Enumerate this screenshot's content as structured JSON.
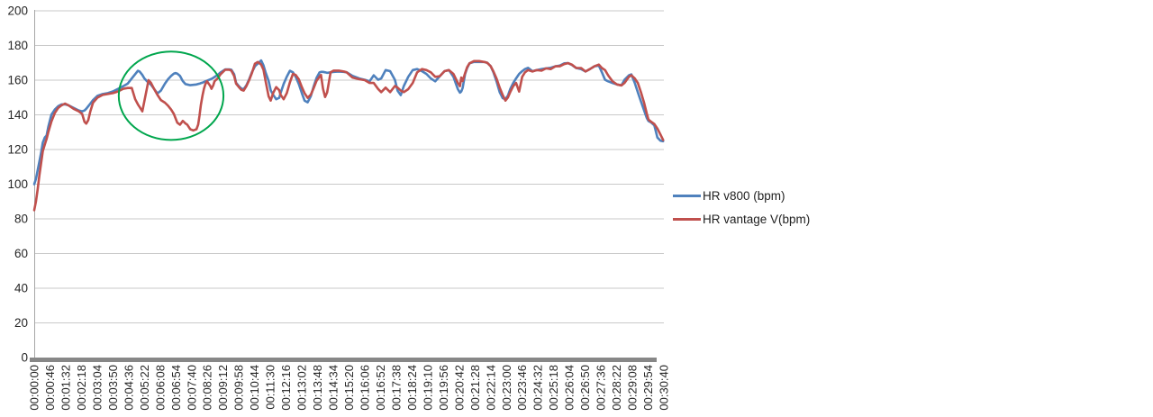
{
  "chart_data": {
    "type": "line",
    "title": "",
    "xlabel": "",
    "ylabel": "",
    "ylim": [
      0,
      200
    ],
    "ytick_step": 20,
    "y_tick_labels": [
      "0",
      "20",
      "40",
      "60",
      "80",
      "100",
      "120",
      "140",
      "160",
      "180",
      "200"
    ],
    "x_tick_interval_seconds": 46,
    "x_range_seconds": [
      0,
      1840
    ],
    "x_tick_labels": [
      "00:00:00",
      "00:00:46",
      "00:01:32",
      "00:02:18",
      "00:03:04",
      "00:03:50",
      "00:04:36",
      "00:05:22",
      "00:06:08",
      "00:06:54",
      "00:07:40",
      "00:08:26",
      "00:09:12",
      "00:09:58",
      "00:10:44",
      "00:11:30",
      "00:12:16",
      "00:13:02",
      "00:13:48",
      "00:14:34",
      "00:15:20",
      "00:16:06",
      "00:16:52",
      "00:17:38",
      "00:18:24",
      "00:19:10",
      "00:19:56",
      "00:20:42",
      "00:21:28",
      "00:22:14",
      "00:23:00",
      "00:23:46",
      "00:24:32",
      "00:25:18",
      "00:26:04",
      "00:26:50",
      "00:27:36",
      "00:28:22",
      "00:29:08",
      "00:29:54",
      "00:30:40"
    ],
    "grid": "horizontal",
    "legend_position": "right",
    "t_seconds": [
      0,
      5,
      10,
      15,
      20,
      25,
      31,
      36,
      41,
      50,
      60,
      70,
      80,
      90,
      100,
      115,
      130,
      140,
      147,
      152,
      158,
      164,
      172,
      185,
      200,
      215,
      230,
      245,
      260,
      273,
      285,
      295,
      303,
      308,
      316,
      322,
      329,
      334,
      341,
      350,
      360,
      370,
      382,
      391,
      400,
      408,
      413,
      418,
      426,
      434,
      442,
      447,
      456,
      465,
      474,
      479,
      483,
      487,
      492,
      496,
      500,
      505,
      514,
      518,
      523,
      527,
      536,
      545,
      558,
      570,
      576,
      584,
      590,
      598,
      605,
      612,
      620,
      628,
      636,
      645,
      653,
      663,
      670,
      676,
      685,
      691,
      698,
      707,
      716,
      720,
      729,
      738,
      747,
      756,
      764,
      773,
      782,
      790,
      799,
      808,
      816,
      825,
      834,
      838,
      844,
      850,
      856,
      866,
      875,
      890,
      905,
      913,
      930,
      950,
      966,
      980,
      992,
      1005,
      1014,
      1027,
      1040,
      1054,
      1062,
      1071,
      1080,
      1093,
      1106,
      1119,
      1133,
      1146,
      1159,
      1172,
      1185,
      1199,
      1212,
      1225,
      1238,
      1244,
      1248,
      1252,
      1259,
      1265,
      1272,
      1285,
      1300,
      1315,
      1324,
      1334,
      1342,
      1351,
      1360,
      1369,
      1377,
      1384,
      1391,
      1400,
      1408,
      1417,
      1426,
      1434,
      1443,
      1456,
      1469,
      1483,
      1496,
      1509,
      1523,
      1536,
      1549,
      1560,
      1571,
      1584,
      1598,
      1611,
      1624,
      1637,
      1650,
      1659,
      1668,
      1677,
      1690,
      1703,
      1716,
      1725,
      1738,
      1745,
      1755,
      1764,
      1773,
      1782,
      1790,
      1795,
      1803,
      1812,
      1821,
      1830,
      1838
    ],
    "series": [
      {
        "name": "HR v800 (bpm)",
        "color": "#4F81BD",
        "values": [
          100,
          103,
          108,
          113,
          118,
          124,
          127,
          128,
          133,
          140,
          143,
          145,
          146,
          146,
          145.5,
          144,
          142.5,
          142,
          142.5,
          143.5,
          145,
          146.5,
          148.5,
          151,
          152,
          152.5,
          153.5,
          155,
          156.5,
          158,
          161,
          163.5,
          165.4,
          165,
          163,
          161,
          159.5,
          158.5,
          157.5,
          155,
          152.3,
          154,
          158,
          160.5,
          162.5,
          163.8,
          164.1,
          163.8,
          162.5,
          159.5,
          157.7,
          157.5,
          157.1,
          157.3,
          157.5,
          157.8,
          158,
          158.3,
          158.6,
          158.9,
          159.3,
          159.7,
          160.4,
          160.8,
          161.3,
          161.8,
          163,
          164.5,
          166.2,
          166.2,
          166,
          163.5,
          158.5,
          156.5,
          155.2,
          154.8,
          157,
          160.5,
          164.5,
          168,
          169.5,
          171.4,
          168.5,
          164.5,
          159.6,
          154.2,
          151.6,
          149,
          149.8,
          152.5,
          157.8,
          162,
          165.4,
          164.5,
          162,
          157.8,
          152.5,
          148.2,
          147.2,
          150.7,
          156,
          161.3,
          164.5,
          164.8,
          164.8,
          164.5,
          164.2,
          164.5,
          164.8,
          165,
          164.8,
          164.5,
          162.5,
          161,
          160.2,
          159.3,
          162.8,
          160.2,
          161,
          165.8,
          165.2,
          160.2,
          153.9,
          151.4,
          156.6,
          161.9,
          165.8,
          166.4,
          165.2,
          163.6,
          161,
          159.3,
          162.3,
          165.2,
          165.8,
          161.9,
          154.8,
          152.8,
          153.5,
          155.5,
          163.5,
          167,
          169.7,
          170.5,
          170.5,
          170.5,
          170,
          168,
          164.5,
          159.3,
          153.1,
          149.6,
          149.1,
          151,
          154.8,
          158.4,
          161,
          163.6,
          165.2,
          166.4,
          167.1,
          165.2,
          165.8,
          166.4,
          166.8,
          167.1,
          168,
          168.4,
          169.7,
          169.8,
          168.8,
          167,
          166.4,
          165,
          166.4,
          168,
          168.4,
          164.5,
          160.2,
          159.3,
          158.4,
          157.5,
          157,
          160.2,
          162.8,
          163.3,
          158.4,
          153,
          147.8,
          142.6,
          138.2,
          136.4,
          135.6,
          133.9,
          126.9,
          125.1,
          124.8
        ]
      },
      {
        "name": "HR vantage V(bpm)",
        "color": "#C0504D",
        "values": [
          85,
          90,
          97,
          105,
          112,
          119,
          123,
          126,
          130,
          136,
          141,
          144,
          145.5,
          146.5,
          145.5,
          143.5,
          142,
          140.5,
          136,
          134.9,
          137,
          142,
          147,
          150,
          151.5,
          152,
          152.5,
          153.5,
          155,
          155.5,
          155.5,
          149,
          146,
          144.5,
          142,
          148,
          155,
          160,
          158.5,
          155,
          151.5,
          148.5,
          147,
          145.3,
          143,
          140.5,
          138,
          135.5,
          134.3,
          136.5,
          135,
          134.4,
          131.7,
          131,
          131.7,
          134.4,
          139.6,
          145.7,
          151.4,
          155,
          157.6,
          159.4,
          156.8,
          155,
          157,
          159.4,
          161,
          163.5,
          166,
          166,
          165.5,
          162.5,
          158,
          156,
          154.5,
          154,
          156.5,
          160,
          164,
          169.5,
          170.5,
          169,
          166,
          159.6,
          150.7,
          148.2,
          152.5,
          156,
          154.2,
          151.6,
          149,
          152.5,
          158.7,
          163.6,
          163,
          160.5,
          156,
          152.5,
          149.8,
          151.6,
          155.1,
          159.6,
          162,
          163,
          155,
          150.3,
          153,
          164.5,
          165.5,
          165.5,
          165,
          164.5,
          161.5,
          160.5,
          160,
          158.4,
          158.4,
          154.9,
          153.1,
          155.7,
          153.1,
          156.6,
          155.7,
          154,
          153.1,
          154.8,
          158.4,
          164.5,
          166.4,
          165.8,
          164.5,
          161.9,
          162.3,
          165.2,
          165.8,
          163.6,
          158.4,
          156.5,
          161.5,
          159.5,
          164,
          167.5,
          169.7,
          171,
          171,
          170.5,
          170,
          168,
          165,
          161,
          155.7,
          151.4,
          148.2,
          150,
          153.1,
          156.6,
          158.4,
          153.4,
          161.9,
          164.5,
          165.8,
          165,
          165.8,
          165.5,
          166.8,
          166.4,
          168,
          168,
          169.3,
          169.8,
          169,
          167,
          167,
          165,
          166.4,
          168,
          169,
          167,
          165.8,
          162.8,
          159.3,
          157.5,
          157,
          158.4,
          162,
          162.8,
          161,
          158.4,
          153.1,
          147,
          140.8,
          137.3,
          136,
          134.7,
          132.1,
          128.6,
          125.5
        ]
      }
    ],
    "annotation": {
      "shape": "ellipse",
      "color": "#00A64D",
      "center_t_seconds": 400,
      "center_bpm": 151,
      "radius_t_seconds": 153,
      "radius_bpm": 25.5,
      "note": "highlights region where HR vantage V drops below HR v800"
    }
  },
  "styles": {
    "gridline_color": "#C9C9C9",
    "axis_line_color": "#A6A6A6",
    "category_axis_band_color": "#878787",
    "tick_text_color": "#262626"
  }
}
